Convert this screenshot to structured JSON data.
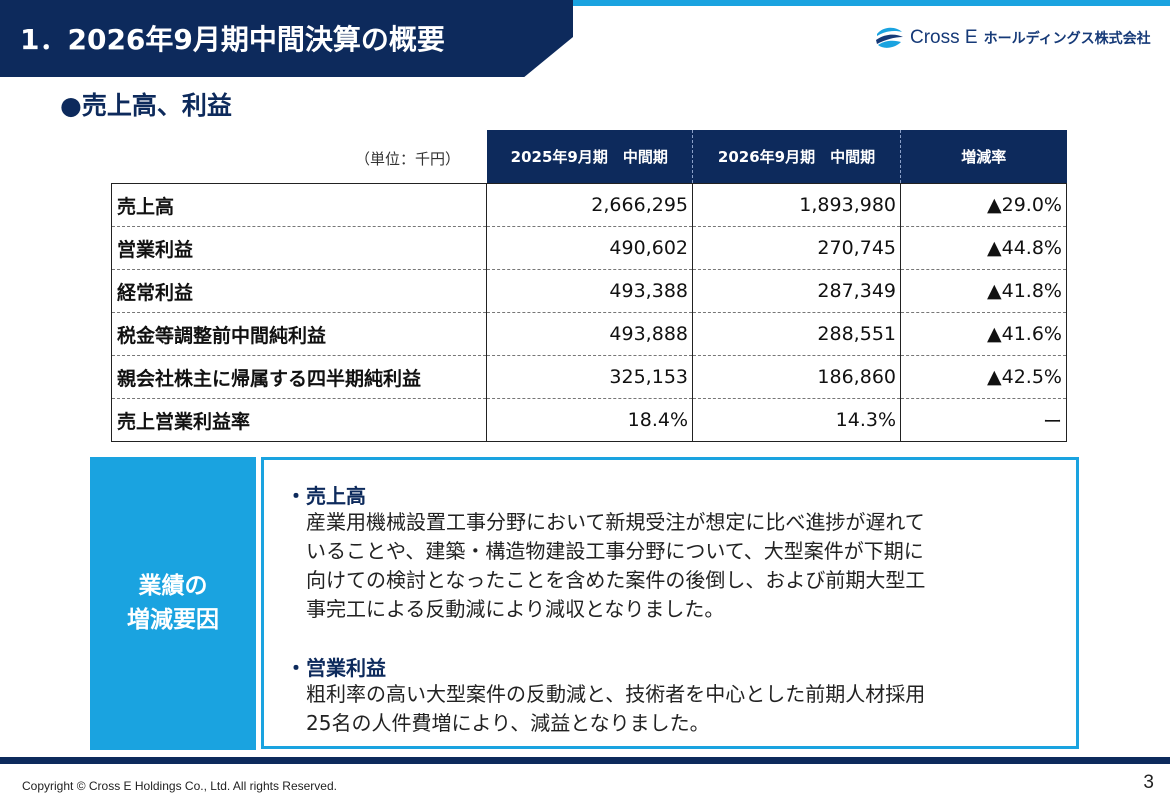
{
  "header": {
    "title": "1．2026年9月期中間決算の概要"
  },
  "logo": {
    "brand": "Cross E",
    "company": "ホールディングス株式会社",
    "brand_color": "#163a78",
    "accent_color": "#1aa3e0"
  },
  "section": {
    "title": "●売上高、利益"
  },
  "table": {
    "unit": "（単位：千円）",
    "columns": [
      "2025年9月期　中間期",
      "2026年9月期　中間期",
      "増減率"
    ],
    "rows": [
      {
        "label": "売上高",
        "prev": "2,666,295",
        "curr": "1,893,980",
        "change": "▲29.0%"
      },
      {
        "label": "営業利益",
        "prev": "490,602",
        "curr": "270,745",
        "change": "▲44.8%"
      },
      {
        "label": "経常利益",
        "prev": "493,388",
        "curr": "287,349",
        "change": "▲41.8%"
      },
      {
        "label": "税金等調整前中間純利益",
        "prev": "493,888",
        "curr": "288,551",
        "change": "▲41.6%"
      },
      {
        "label": "親会社株主に帰属する四半期純利益",
        "prev": "325,153",
        "curr": "186,860",
        "change": "▲42.5%"
      },
      {
        "label": "売上営業利益率",
        "prev": "18.4%",
        "curr": "14.3%",
        "change": "ー"
      }
    ]
  },
  "factors": {
    "label_line1": "業績の",
    "label_line2": "増減要因",
    "sales_heading": "・売上高",
    "sales_line1": "産業用機械設置工事分野において新規受注が想定に比べ進捗が遅れて",
    "sales_line2": "いることや、建築・構造物建設工事分野について、大型案件が下期に",
    "sales_line3": "向けての検討となったことを含めた案件の後倒し、および前期大型工",
    "sales_line4": "事完工による反動減により減収となりました。",
    "profit_heading": "・営業利益",
    "profit_line1": "粗利率の高い大型案件の反動減と、技術者を中心とした前期人材採用",
    "profit_line2": "25名の人件費増により、減益となりました。"
  },
  "footer": {
    "copyright": "Copyright © Cross E Holdings Co., Ltd. All rights Reserved.",
    "page_number": "3"
  },
  "colors": {
    "navy": "#0d2a5c",
    "light_blue": "#1aa3e0"
  }
}
